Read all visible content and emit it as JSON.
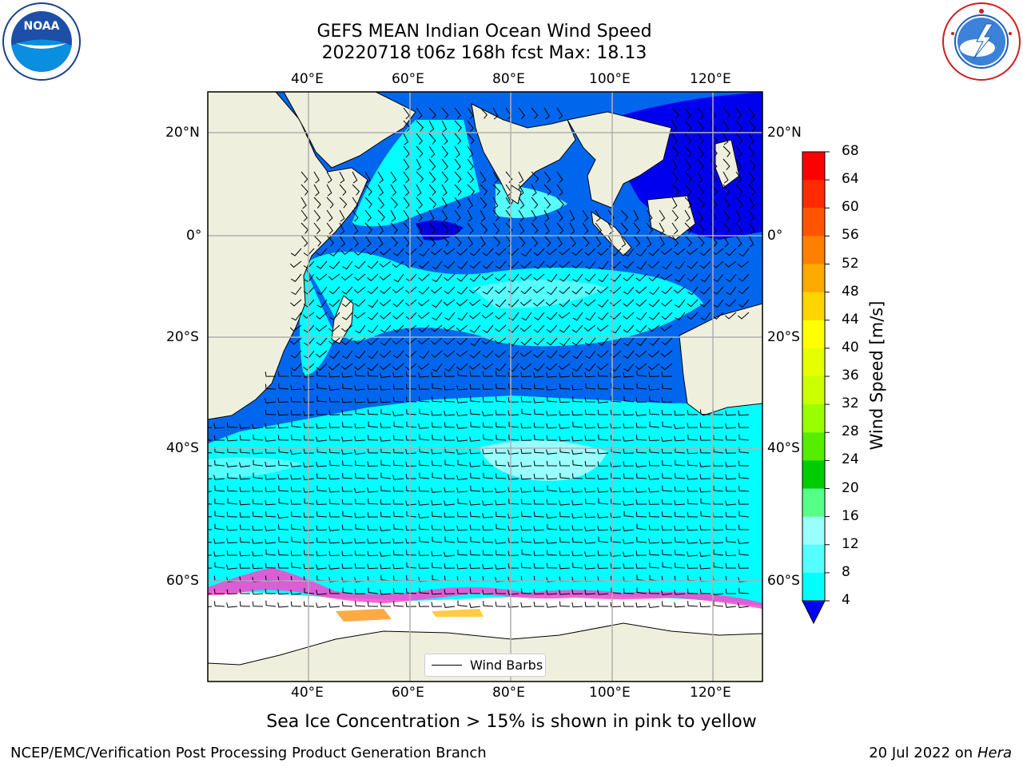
{
  "title": {
    "line1": "GEFS MEAN Indian Ocean Wind Speed",
    "line2": "20220718 t06z 168h fcst   Max: 18.13"
  },
  "logos": {
    "noaa": "NOAA",
    "noaa_ring": "NATIONAL OCEANIC AND ATMOSPHERIC ADMINISTRATION · U.S. DEPARTMENT OF COMMERCE",
    "nws_ring": "NATIONAL WEATHER SERVICE"
  },
  "map": {
    "lon_top": [
      "40°E",
      "60°E",
      "80°E",
      "100°E",
      "120°E"
    ],
    "lon_bottom": [
      "40°E",
      "60°E",
      "80°E",
      "100°E",
      "120°E"
    ],
    "lat_left": [
      "20°N",
      "0°",
      "20°S",
      "40°S",
      "60°S"
    ],
    "lat_right": [
      "20°N",
      "0°",
      "20°S",
      "40°S",
      "60°S"
    ],
    "legend_label": "Wind Barbs"
  },
  "colorbar": {
    "label": "Wind Speed [m/s]",
    "ticks": [
      "68",
      "64",
      "60",
      "56",
      "52",
      "48",
      "44",
      "40",
      "36",
      "32",
      "28",
      "24",
      "20",
      "16",
      "12",
      "8",
      "4"
    ],
    "colors": [
      "#ff0000",
      "#ff2a00",
      "#ff5500",
      "#ff8000",
      "#ffaa00",
      "#ffd400",
      "#ffff00",
      "#e6ff00",
      "#ccff00",
      "#99ff00",
      "#55ee00",
      "#00cc00",
      "#55ff88",
      "#99ffff",
      "#55ffff",
      "#00ffff",
      "#0088ff"
    ],
    "under_color": "#0000ff"
  },
  "caption": "Sea Ice Concentration > 15% is shown in pink to yellow",
  "footer": {
    "left": "NCEP/EMC/Verification Post Processing Product Generation Branch",
    "right_prefix": "20 Jul 2022 on ",
    "right_host": "Hera"
  }
}
